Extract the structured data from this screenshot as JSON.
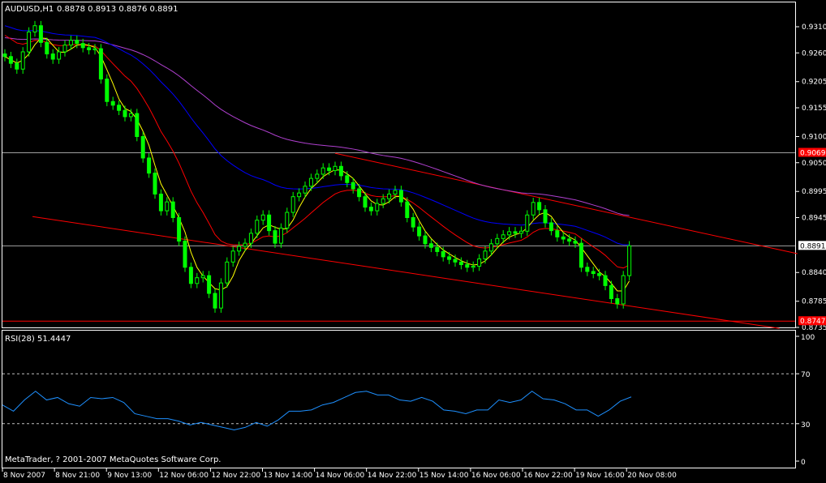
{
  "header": {
    "symbol": "AUDUSD,H1",
    "ohlc": "0.8878 0.8913 0.8876 0.8891"
  },
  "rsi_panel": {
    "label": "RSI(28) 51.4447"
  },
  "copyright": "MetaTrader, ? 2001-2007 MetaQuotes Software Corp.",
  "colors": {
    "background": "#000000",
    "candle": "#00ff00",
    "ma_fast": "#ffff00",
    "ma_mid": "#ff0000",
    "ma_slow": "#0000ff",
    "ma_long": "#b040d0",
    "trendline": "#ff0000",
    "rsi": "#1e90ff",
    "level_marker_red": "#ff0000",
    "grid_text": "#ffffff"
  },
  "chart_data": [
    {
      "type": "candlestick",
      "title": "AUDUSD,H1",
      "ylim": [
        0.8735,
        0.931
      ],
      "y_ticks": [
        "0.9310",
        "0.9260",
        "0.9205",
        "0.9155",
        "0.9100",
        "0.9050",
        "0.8995",
        "0.8945",
        "0.8840",
        "0.8785",
        "0.8735"
      ],
      "x_ticks": [
        "8 Nov 2007",
        "8 Nov 21:00",
        "9 Nov 13:00",
        "12 Nov 06:00",
        "12 Nov 22:00",
        "13 Nov 14:00",
        "14 Nov 06:00",
        "14 Nov 22:00",
        "15 Nov 14:00",
        "16 Nov 06:00",
        "16 Nov 22:00",
        "19 Nov 16:00",
        "20 Nov 08:00"
      ],
      "close": [
        0.9253,
        0.924,
        0.9229,
        0.9262,
        0.93,
        0.9312,
        0.928,
        0.9258,
        0.9248,
        0.9262,
        0.9275,
        0.9284,
        0.9278,
        0.927,
        0.9266,
        0.9268,
        0.921,
        0.9167,
        0.916,
        0.915,
        0.9138,
        0.9144,
        0.91,
        0.9059,
        0.903,
        0.899,
        0.8958,
        0.8975,
        0.8945,
        0.89,
        0.885,
        0.8819,
        0.883,
        0.8834,
        0.88,
        0.8772,
        0.882,
        0.886,
        0.8881,
        0.889,
        0.8896,
        0.8915,
        0.894,
        0.895,
        0.892,
        0.8896,
        0.8925,
        0.8955,
        0.8985,
        0.8992,
        0.9005,
        0.902,
        0.9028,
        0.904,
        0.9035,
        0.9043,
        0.9025,
        0.9012,
        0.9,
        0.8985,
        0.8965,
        0.8958,
        0.8972,
        0.8981,
        0.899,
        0.8997,
        0.8975,
        0.8945,
        0.8927,
        0.891,
        0.8895,
        0.8888,
        0.888,
        0.887,
        0.8865,
        0.886,
        0.8855,
        0.885,
        0.8852,
        0.8866,
        0.8881,
        0.8895,
        0.8905,
        0.8912,
        0.8918,
        0.8915,
        0.8919,
        0.895,
        0.8974,
        0.896,
        0.8935,
        0.892,
        0.8908,
        0.8904,
        0.89,
        0.8896,
        0.885,
        0.8842,
        0.8838,
        0.8834,
        0.8815,
        0.879,
        0.878,
        0.8834,
        0.8891
      ],
      "price_levels": [
        {
          "value": "0.9069",
          "style": "red-marker"
        },
        {
          "value": "0.8891",
          "style": "bid-marker"
        },
        {
          "value": "0.8747",
          "style": "red-marker"
        }
      ],
      "trendlines": [
        {
          "from": {
            "bar": 55,
            "price": 0.9068
          },
          "to": {
            "bar": 132,
            "price": 0.8876
          }
        },
        {
          "from": {
            "bar": 4.6,
            "price": 0.8947
          },
          "to": {
            "bar": 129,
            "price": 0.8733
          }
        }
      ]
    },
    {
      "type": "line",
      "title": "RSI(28) 51.4447",
      "ylim": [
        0,
        100
      ],
      "y_ticks": [
        "100",
        "70",
        "30",
        "0"
      ],
      "levels": [
        70,
        30
      ],
      "values": [
        45,
        40,
        49,
        56,
        49,
        51,
        46,
        44,
        51,
        50,
        51,
        47,
        38,
        36,
        34,
        34,
        32,
        29,
        31,
        29,
        27,
        25,
        27,
        31,
        28,
        33,
        40,
        40,
        41,
        45,
        47,
        51,
        55,
        56,
        53,
        53,
        49,
        48,
        51,
        48,
        41,
        40,
        38,
        41,
        41,
        49,
        47,
        49,
        56,
        50,
        49,
        46,
        41,
        41,
        36,
        41,
        48,
        51.4447
      ]
    }
  ]
}
